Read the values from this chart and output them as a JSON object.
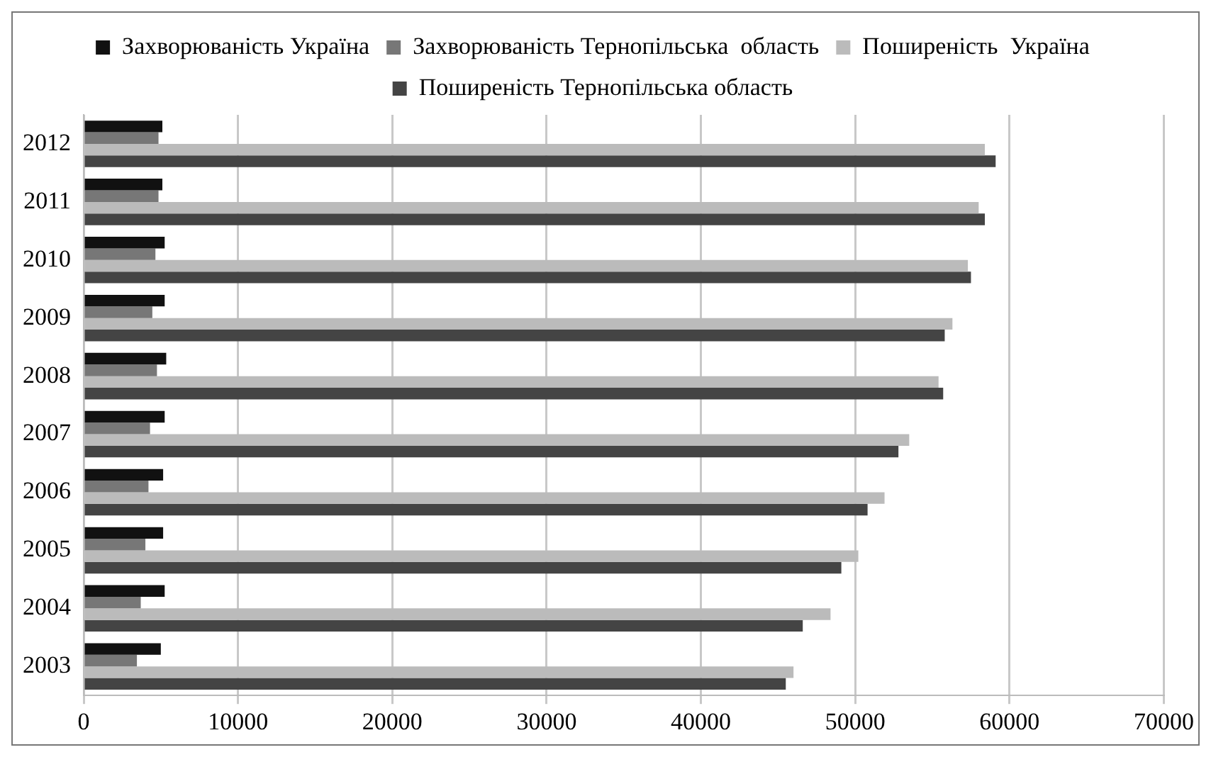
{
  "chart_data": {
    "type": "bar",
    "orientation": "horizontal",
    "categories": [
      "2012",
      "2011",
      "2010",
      "2009",
      "2008",
      "2007",
      "2006",
      "2005",
      "2004",
      "2003"
    ],
    "series": [
      {
        "name": "Захворюваність Україна",
        "color": "#111111",
        "values": [
          5100,
          5100,
          5250,
          5250,
          5350,
          5250,
          5150,
          5150,
          5250,
          5000
        ]
      },
      {
        "name": "Захворюваність Тернопільська  область",
        "color": "#777777",
        "values": [
          4850,
          4850,
          4650,
          4450,
          4750,
          4300,
          4200,
          4000,
          3700,
          3450
        ]
      },
      {
        "name": "Поширеність  Україна",
        "color": "#bbbbbb",
        "values": [
          58400,
          58000,
          57300,
          56300,
          55400,
          53500,
          51900,
          50200,
          48400,
          46000
        ]
      },
      {
        "name": "Поширеність Тернопільська область",
        "color": "#444444",
        "values": [
          59100,
          58400,
          57500,
          55800,
          55700,
          52800,
          50800,
          49100,
          46600,
          45500
        ]
      }
    ],
    "xlim": [
      0,
      70000
    ],
    "xticks": [
      0,
      10000,
      20000,
      30000,
      40000,
      50000,
      60000,
      70000
    ],
    "grid": "x",
    "legend": "top"
  }
}
